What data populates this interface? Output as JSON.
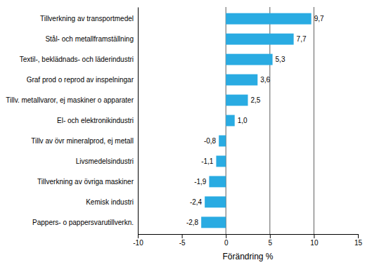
{
  "chart_data": {
    "type": "bar",
    "orientation": "horizontal",
    "categories": [
      "Pappers- o pappersvarutillverkn.",
      "Kemisk industri",
      "Tillverkning av övriga maskiner",
      "Livsmedelsindustri",
      "Tillv av övr mineralprod, ej metall",
      "El- och elektronikindustri",
      "Tillv. metallvaror, ej maskiner o apparater",
      "Graf prod o reprod av inspelningar",
      "Textil-, beklädnads- och läderindustri",
      "Stål- och metallframställning",
      "Tillverkning av transportmedel"
    ],
    "values": [
      -2.8,
      -2.4,
      -1.9,
      -1.1,
      -0.8,
      1.0,
      2.5,
      3.6,
      5.3,
      7.7,
      9.7
    ],
    "value_labels": [
      "-2,8",
      "-2,4",
      "-1,9",
      "-1,1",
      "-0,8",
      "1,0",
      "2,5",
      "3,6",
      "5,3",
      "7,7",
      "9,7"
    ],
    "data_labels": true,
    "color": "#29abe2",
    "xlabel": "Förändring %",
    "xlim": [
      -10,
      15
    ],
    "xticks": [
      -10,
      -5,
      0,
      5,
      10,
      15
    ],
    "vlines": [
      0,
      5,
      10
    ],
    "grid": false
  }
}
